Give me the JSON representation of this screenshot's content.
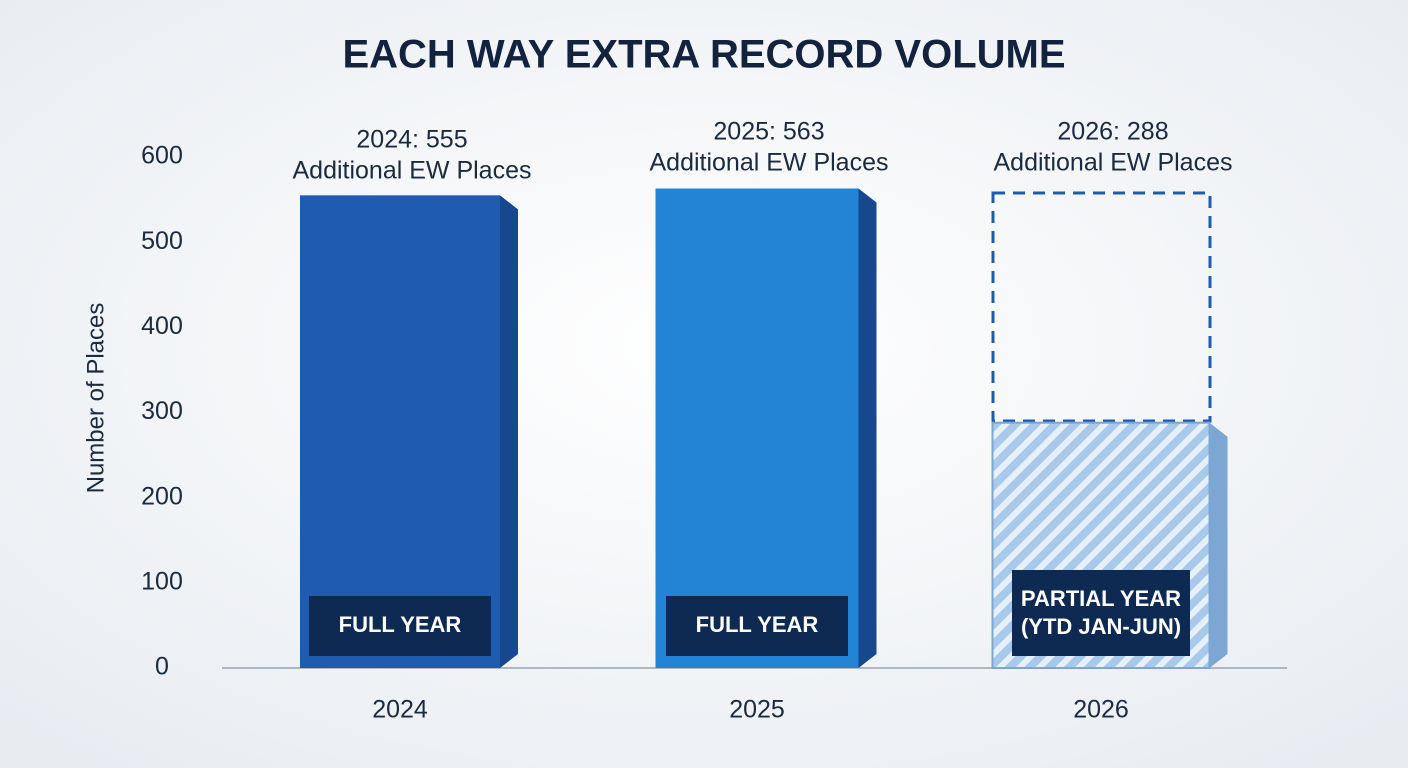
{
  "chart_data": {
    "type": "bar",
    "title": "EACH WAY EXTRA RECORD VOLUME",
    "y_label": "Number of Places",
    "categories": [
      "2024",
      "2025",
      "2026"
    ],
    "values": [
      555,
      563,
      288
    ],
    "value_labels": [
      "2024: 555",
      "2025: 563",
      "2026: 288"
    ],
    "value_label_notes": [
      "Additional EW Places",
      "Additional EW Places",
      "Additional EW Places"
    ],
    "period_labels": [
      [
        "FULL YEAR"
      ],
      [
        "FULL YEAR"
      ],
      [
        "PARTIAL YEAR",
        "(YTD JAN-JUN)"
      ]
    ],
    "colors": [
      "#1f5bb0",
      "#2384d6",
      "#8fb8e0"
    ],
    "hatched": [
      false,
      false,
      true
    ],
    "ylim": [
      0,
      600
    ],
    "yticks": [
      0,
      100,
      200,
      300,
      400,
      500,
      600
    ],
    "grid": false
  }
}
